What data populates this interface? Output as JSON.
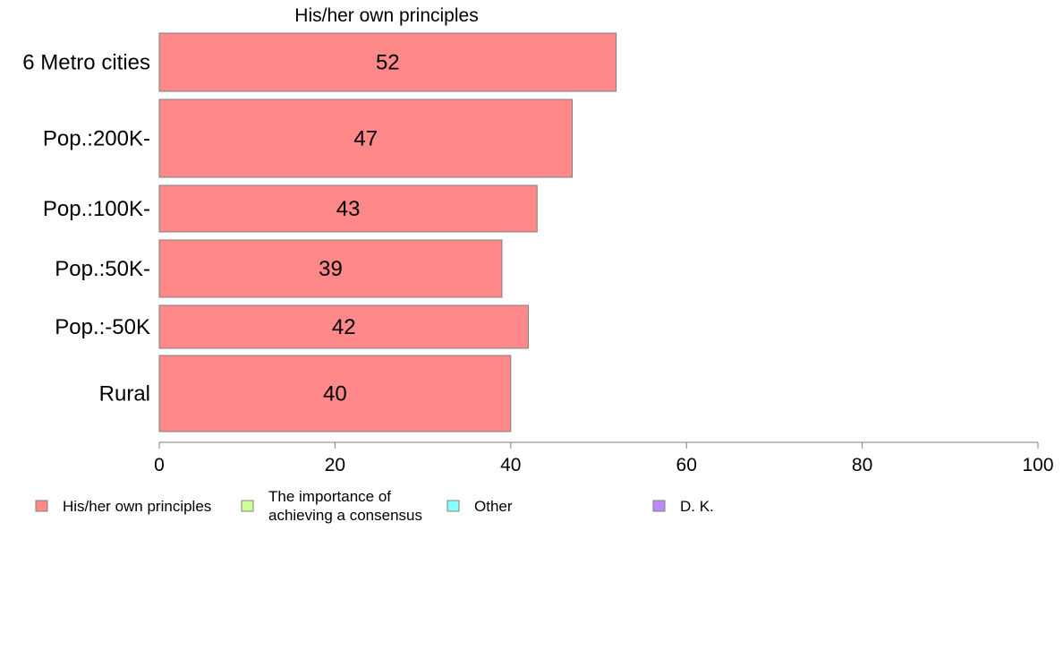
{
  "chart_data": {
    "type": "bar",
    "orientation": "horizontal",
    "title": "His/her own principles",
    "categories": [
      "6 Metro cities",
      "Pop.:200K-",
      "Pop.:100K-",
      "Pop.:50K-",
      "Pop.:-50K",
      "Rural"
    ],
    "values": [
      52,
      47,
      43,
      39,
      42,
      40
    ],
    "xlim": [
      0,
      100
    ],
    "xticks": [
      "0",
      "20",
      "40",
      "60",
      "80",
      "100"
    ],
    "xlabel": "",
    "ylabel": "",
    "grid": false,
    "bar_color": "#ff8888",
    "legend_position": "bottom-left",
    "legend": [
      {
        "label": [
          "His/her own principles"
        ],
        "color": "#ff8888"
      },
      {
        "label": [
          "The importance of",
          "achieving a consensus"
        ],
        "color": "#ccff99"
      },
      {
        "label": [
          "Other"
        ],
        "color": "#88ffff"
      },
      {
        "label": [
          "D. K."
        ],
        "color": "#bb88ff"
      }
    ]
  }
}
